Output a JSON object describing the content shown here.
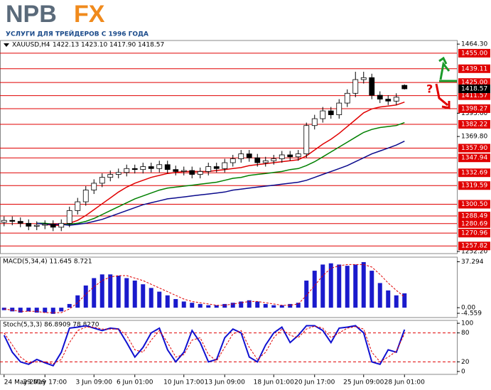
{
  "header": {
    "logo": [
      "NPB",
      "FX"
    ],
    "tagline": "УСЛУГИ ДЛЯ ТРЕЙДЕРОВ С 1996 ГОДА",
    "annotation": "?"
  },
  "chart_data": [
    {
      "type": "candlestick",
      "title": "XAUUSD,H4",
      "last_labels": [
        "1422.13",
        "1423.10",
        "1417.90",
        "1418.57"
      ],
      "x": [
        0,
        1,
        2,
        3,
        4,
        5,
        6,
        7,
        8,
        9,
        10,
        11,
        12,
        13,
        14,
        15,
        16,
        17,
        18,
        19,
        20,
        21,
        22,
        23,
        24,
        25,
        26,
        27,
        28,
        29,
        30,
        31,
        32,
        33,
        34,
        35,
        36,
        37,
        38,
        39,
        40,
        41,
        42,
        43,
        44,
        45,
        46,
        47,
        48,
        49
      ],
      "open": [
        1282,
        1284,
        1283,
        1281,
        1278,
        1279,
        1280,
        1277,
        1281,
        1294,
        1303,
        1315,
        1322,
        1328,
        1331,
        1333,
        1337,
        1336,
        1339,
        1337,
        1341,
        1336,
        1334,
        1335,
        1331,
        1334,
        1339,
        1337,
        1343,
        1347,
        1352,
        1348,
        1343,
        1345,
        1347,
        1351,
        1349,
        1352,
        1381,
        1388,
        1396,
        1392,
        1404,
        1414,
        1428,
        1430,
        1412,
        1408,
        1406,
        1422.13
      ],
      "high": [
        1288,
        1288,
        1287,
        1285,
        1283,
        1284,
        1284,
        1285,
        1298,
        1307,
        1319,
        1326,
        1332,
        1335,
        1337,
        1341,
        1341,
        1343,
        1343,
        1345,
        1345,
        1340,
        1339,
        1339,
        1338,
        1343,
        1343,
        1347,
        1351,
        1356,
        1356,
        1352,
        1349,
        1351,
        1355,
        1355,
        1356,
        1384,
        1392,
        1400,
        1400,
        1408,
        1418,
        1436,
        1436,
        1434,
        1416,
        1412,
        1414,
        1423.1
      ],
      "low": [
        1278,
        1279,
        1277,
        1274,
        1274,
        1275,
        1273,
        1273,
        1277,
        1290,
        1299,
        1311,
        1318,
        1324,
        1327,
        1329,
        1332,
        1332,
        1333,
        1333,
        1332,
        1330,
        1330,
        1327,
        1327,
        1330,
        1333,
        1333,
        1339,
        1343,
        1344,
        1339,
        1339,
        1341,
        1343,
        1345,
        1345,
        1348,
        1377,
        1384,
        1388,
        1388,
        1400,
        1410,
        1424,
        1408,
        1404,
        1402,
        1402,
        1417.9
      ],
      "close": [
        1284,
        1283,
        1281,
        1278,
        1279,
        1280,
        1277,
        1281,
        1294,
        1303,
        1315,
        1322,
        1328,
        1331,
        1333,
        1337,
        1336,
        1339,
        1337,
        1341,
        1336,
        1334,
        1335,
        1331,
        1334,
        1339,
        1337,
        1343,
        1347,
        1352,
        1348,
        1343,
        1345,
        1347,
        1351,
        1349,
        1352,
        1381,
        1388,
        1396,
        1392,
        1404,
        1414,
        1428,
        1430,
        1412,
        1408,
        1406,
        1410,
        1418.57
      ],
      "series": [
        {
          "color": "#e00000",
          "values": [
            null,
            null,
            null,
            null,
            1281,
            1280,
            1279,
            1279,
            1281,
            1284,
            1289,
            1295,
            1301,
            1307,
            1313,
            1318,
            1322,
            1325,
            1328,
            1330,
            1332,
            1333,
            1334,
            1334,
            1334,
            1334,
            1335,
            1336,
            1337,
            1338,
            1340,
            1341,
            1342,
            1343,
            1344,
            1345,
            1346,
            1350,
            1356,
            1362,
            1367,
            1373,
            1380,
            1387,
            1394,
            1398,
            1400,
            1401,
            1402,
            1405
          ]
        },
        {
          "color": "#008000",
          "values": [
            null,
            null,
            null,
            null,
            1281,
            1281,
            1280,
            1280,
            1280,
            1281,
            1283,
            1286,
            1290,
            1294,
            1298,
            1302,
            1306,
            1309,
            1312,
            1315,
            1317,
            1318,
            1319,
            1320,
            1321,
            1322,
            1323,
            1325,
            1327,
            1328,
            1330,
            1331,
            1332,
            1333,
            1334,
            1336,
            1337,
            1340,
            1344,
            1349,
            1354,
            1359,
            1364,
            1369,
            1374,
            1377,
            1379,
            1380,
            1381,
            1384
          ]
        },
        {
          "color": "#0a0a8c",
          "values": [
            null,
            null,
            null,
            null,
            1281,
            1280,
            1280,
            1280,
            1279,
            1280,
            1281,
            1283,
            1285,
            1288,
            1291,
            1294,
            1297,
            1300,
            1302,
            1304,
            1306,
            1307,
            1308,
            1309,
            1310,
            1311,
            1312,
            1313,
            1315,
            1316,
            1317,
            1318,
            1319,
            1320,
            1321,
            1322,
            1323,
            1325,
            1328,
            1331,
            1334,
            1337,
            1340,
            1344,
            1348,
            1352,
            1355,
            1358,
            1361,
            1365
          ]
        }
      ],
      "xlim": [
        -0.5,
        49.5
      ],
      "xticks": [
        {
          "value": 0,
          "label": "24 May 2019"
        },
        {
          "value": 5,
          "label": "29 May 17:00"
        },
        {
          "value": 11,
          "label": "3 Jun 09:00"
        },
        {
          "value": 16,
          "label": "6 Jun 01:00"
        },
        {
          "value": 22,
          "label": "10 Jun 17:00"
        },
        {
          "value": 27,
          "label": "13 Jun 09:00"
        },
        {
          "value": 33,
          "label": "18 Jun 01:00"
        },
        {
          "value": 38,
          "label": "20 Jun 17:00"
        },
        {
          "value": 44,
          "label": "25 Jun 09:00"
        },
        {
          "value": 49,
          "label": "28 Jun 01:00"
        }
      ],
      "ylim": [
        1250,
        1468
      ],
      "yticks": [
        {
          "value": 1464.3,
          "label": "1464.30"
        },
        {
          "value": 1393.6,
          "label": "1393.60"
        },
        {
          "value": 1369.8,
          "label": "1369.80"
        },
        {
          "value": 1252.2,
          "label": "1252.20"
        }
      ],
      "levels": [
        {
          "value": 1455,
          "label": "1455.00"
        },
        {
          "value": 1439.11,
          "label": "1439.11"
        },
        {
          "value": 1425,
          "label": "1425.00"
        },
        {
          "value": 1411.57,
          "label": "1411.57"
        },
        {
          "value": 1398.27,
          "label": "1398.27"
        },
        {
          "value": 1382.22,
          "label": "1382.22"
        },
        {
          "value": 1357.9,
          "label": "1357.90"
        },
        {
          "value": 1347.94,
          "label": "1347.94"
        },
        {
          "value": 1332.69,
          "label": "1332.69"
        },
        {
          "value": 1319.59,
          "label": "1319.59"
        },
        {
          "value": 1300.5,
          "label": "1300.50"
        },
        {
          "value": 1288.49,
          "label": "1288.49"
        },
        {
          "value": 1280.69,
          "label": "1280.69"
        },
        {
          "value": 1270.96,
          "label": "1270.96"
        },
        {
          "value": 1257.82,
          "label": "1257.82"
        }
      ],
      "level_color": "#e00000"
    },
    {
      "type": "macd",
      "title": "MACD(5,34,4) 11.645 8.721",
      "values": [
        -2,
        -3,
        -4,
        -3,
        -4,
        -4,
        -5,
        -3,
        3,
        10,
        18,
        24,
        27,
        27,
        26,
        24,
        22,
        19,
        16,
        13,
        10,
        7,
        5,
        4,
        3,
        2,
        2,
        3,
        4,
        5,
        6,
        5,
        3,
        2,
        2,
        3,
        4,
        22,
        30,
        35,
        36,
        35,
        34,
        35,
        37,
        30,
        20,
        14,
        10,
        11.645
      ],
      "signal": [
        -1,
        -2,
        -3,
        -3,
        -3,
        -4,
        -4,
        -4,
        -1,
        4,
        11,
        17,
        22,
        25,
        26,
        26,
        24,
        22,
        19,
        16,
        13,
        10,
        7,
        5,
        4,
        3,
        2,
        2,
        3,
        4,
        5,
        5,
        4,
        3,
        2,
        2,
        3,
        10,
        18,
        26,
        32,
        34,
        35,
        35,
        35,
        33,
        27,
        20,
        14,
        8.721
      ],
      "color": "#1a1acc",
      "signal_color": "#e00000",
      "ylim": [
        -8,
        41
      ],
      "yticks": [
        37.294,
        {
          "value": 0,
          "label": "0.00"
        },
        -4.559
      ]
    },
    {
      "type": "stoch",
      "title": "Stoch(5,3,3) 86.8909 78.8270",
      "k": [
        75,
        40,
        20,
        15,
        25,
        18,
        12,
        40,
        90,
        92,
        95,
        90,
        85,
        90,
        88,
        60,
        30,
        50,
        80,
        90,
        45,
        20,
        40,
        85,
        60,
        20,
        25,
        70,
        88,
        80,
        30,
        20,
        55,
        80,
        92,
        60,
        75,
        95,
        95,
        85,
        60,
        90,
        92,
        95,
        80,
        20,
        15,
        45,
        40,
        86.8909
      ],
      "d": [
        80,
        55,
        30,
        18,
        20,
        20,
        16,
        25,
        60,
        85,
        92,
        92,
        88,
        88,
        88,
        75,
        45,
        40,
        65,
        85,
        60,
        30,
        35,
        65,
        70,
        35,
        22,
        50,
        78,
        85,
        50,
        25,
        40,
        70,
        88,
        75,
        70,
        88,
        94,
        90,
        70,
        80,
        90,
        93,
        88,
        40,
        20,
        30,
        42,
        78.827
      ],
      "color": "#1010d0",
      "signal_color": "#e00000",
      "ylim": [
        -6,
        106
      ],
      "yticks": [
        100,
        80,
        20,
        0
      ],
      "levels": [
        80,
        20
      ]
    }
  ]
}
